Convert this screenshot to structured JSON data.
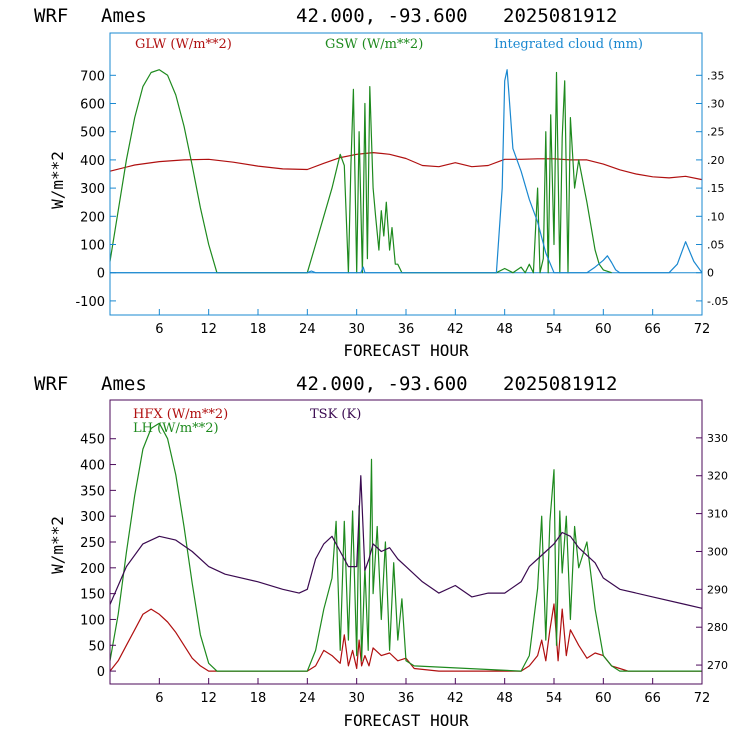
{
  "colors": {
    "glw": "#b01010",
    "gsw": "#1e8a1e",
    "cloud": "#1a88d0",
    "hfx": "#b01010",
    "lh": "#1e8a1e",
    "tsk": "#3a0a50",
    "frame1": "#1a88d0",
    "frame2": "#4b0a5a"
  },
  "chart_data": [
    {
      "type": "line",
      "header": {
        "model": "WRF",
        "site": "Ames",
        "coords": "42.000, -93.600",
        "init": "2025081912"
      },
      "xlabel": "FORECAST HOUR",
      "ylabel": "W/m**2",
      "xlim": [
        0,
        72
      ],
      "ylim": [
        -150,
        850
      ],
      "y2lim": [
        -0.075,
        0.425
      ],
      "x_ticks": [
        "6",
        "12",
        "18",
        "24",
        "30",
        "36",
        "42",
        "48",
        "54",
        "60",
        "66",
        "72"
      ],
      "y_ticks": [
        "-100",
        "0",
        "100",
        "200",
        "300",
        "400",
        "500",
        "600",
        "700"
      ],
      "y2_ticks": [
        "-.05",
        "0",
        ".05",
        ".10",
        ".15",
        ".20",
        ".25",
        ".30",
        ".35"
      ],
      "grid": false,
      "legend_placement": "top",
      "series": [
        {
          "name": "GLW (W/m**2)",
          "axis": "left",
          "x": [
            0,
            3,
            6,
            9,
            12,
            15,
            18,
            21,
            24,
            26,
            28,
            30,
            32,
            34,
            36,
            38,
            40,
            42,
            44,
            46,
            48,
            50,
            52,
            54,
            56,
            58,
            60,
            62,
            64,
            66,
            68,
            70,
            72
          ],
          "y": [
            360,
            382,
            394,
            400,
            402,
            392,
            378,
            368,
            366,
            388,
            408,
            420,
            426,
            420,
            405,
            380,
            376,
            390,
            376,
            380,
            402,
            402,
            404,
            404,
            400,
            400,
            385,
            365,
            350,
            340,
            336,
            342,
            330
          ]
        },
        {
          "name": "GSW (W/m**2)",
          "axis": "left",
          "x": [
            0,
            1,
            2,
            3,
            4,
            5,
            6,
            7,
            8,
            9,
            10,
            11,
            12,
            13,
            24,
            25,
            26,
            27,
            28,
            28.5,
            29,
            29.3,
            29.6,
            30,
            30.3,
            30.7,
            31,
            31.3,
            31.6,
            32,
            32.3,
            32.7,
            33,
            33.3,
            33.6,
            34,
            34.3,
            34.7,
            35,
            35.5,
            36,
            37,
            47,
            48,
            49,
            50,
            50.5,
            51,
            51.5,
            52,
            52.3,
            52.7,
            53,
            53.3,
            53.6,
            54,
            54.3,
            54.7,
            55,
            55.3,
            55.7,
            56,
            56.5,
            57,
            58,
            59,
            59.5,
            60,
            61
          ],
          "y": [
            40,
            220,
            400,
            550,
            660,
            710,
            720,
            700,
            630,
            520,
            380,
            230,
            100,
            0,
            0,
            100,
            200,
            300,
            420,
            380,
            0,
            380,
            650,
            0,
            500,
            0,
            600,
            50,
            660,
            300,
            200,
            80,
            220,
            130,
            250,
            80,
            160,
            30,
            30,
            0,
            0,
            0,
            0,
            15,
            0,
            20,
            0,
            30,
            0,
            300,
            0,
            50,
            500,
            0,
            560,
            100,
            710,
            0,
            480,
            680,
            0,
            550,
            300,
            400,
            250,
            80,
            30,
            10,
            0
          ]
        },
        {
          "name": "Integrated cloud (mm)",
          "axis": "right",
          "x": [
            0,
            24,
            24.5,
            25,
            29,
            30.5,
            30.8,
            31,
            31.2,
            47,
            47.7,
            48,
            48.3,
            48.5,
            49,
            49.5,
            50,
            51,
            52,
            53,
            54,
            58,
            59,
            60,
            60.5,
            61,
            61.5,
            62,
            68,
            69,
            70,
            71,
            72
          ],
          "y": [
            0,
            0,
            0.003,
            0,
            0,
            0,
            0.01,
            0,
            0,
            0,
            0.15,
            0.34,
            0.36,
            0.32,
            0.22,
            0.2,
            0.18,
            0.13,
            0.09,
            0.035,
            0,
            0,
            0.01,
            0.022,
            0.03,
            0.018,
            0.005,
            0,
            0,
            0.015,
            0.055,
            0.02,
            0
          ]
        }
      ]
    },
    {
      "type": "line",
      "header": {
        "model": "WRF",
        "site": "Ames",
        "coords": "42.000, -93.600",
        "init": "2025081912"
      },
      "xlabel": "FORECAST HOUR",
      "ylabel": "W/m**2",
      "xlim": [
        0,
        72
      ],
      "ylim": [
        -25,
        525
      ],
      "y2lim": [
        265,
        340
      ],
      "x_ticks": [
        "6",
        "12",
        "18",
        "24",
        "30",
        "36",
        "42",
        "48",
        "54",
        "60",
        "66",
        "72"
      ],
      "y_ticks": [
        "0",
        "50",
        "100",
        "150",
        "200",
        "250",
        "300",
        "350",
        "400",
        "450"
      ],
      "y2_ticks": [
        "270",
        "280",
        "290",
        "300",
        "310",
        "320",
        "330"
      ],
      "grid": false,
      "legend_placement": "top-left",
      "series": [
        {
          "name": "HFX (W/m**2)",
          "axis": "left",
          "x": [
            0,
            1,
            2,
            3,
            4,
            5,
            6,
            7,
            8,
            9,
            10,
            11,
            12,
            24,
            25,
            26,
            27,
            28,
            28.5,
            29,
            29.5,
            30,
            30.3,
            30.6,
            31,
            31.5,
            32,
            33,
            34,
            35,
            36,
            37,
            40,
            50,
            51,
            52,
            52.5,
            53,
            53.5,
            54,
            54.5,
            55,
            55.5,
            56,
            57,
            58,
            59,
            60,
            61,
            62,
            63,
            72
          ],
          "y": [
            0,
            20,
            50,
            80,
            110,
            120,
            110,
            95,
            75,
            50,
            25,
            10,
            0,
            0,
            10,
            40,
            30,
            15,
            70,
            10,
            40,
            5,
            60,
            10,
            30,
            10,
            45,
            30,
            35,
            20,
            25,
            5,
            0,
            0,
            10,
            30,
            60,
            20,
            80,
            130,
            20,
            120,
            30,
            80,
            50,
            25,
            35,
            30,
            10,
            5,
            0,
            0
          ]
        },
        {
          "name": "LH  (W/m**2)",
          "axis": "left",
          "x": [
            0,
            1,
            2,
            3,
            4,
            5,
            6,
            7,
            8,
            9,
            10,
            11,
            12,
            13,
            24,
            25,
            26,
            27,
            27.5,
            28,
            28.5,
            29,
            29.5,
            30,
            30.3,
            30.6,
            31,
            31.4,
            31.8,
            32,
            32.5,
            33,
            33.5,
            34,
            34.5,
            35,
            35.5,
            36,
            37,
            50,
            51,
            52,
            52.5,
            53,
            53.5,
            54,
            54.3,
            54.7,
            55,
            55.5,
            56,
            56.5,
            57,
            58,
            59,
            60,
            61,
            62,
            72
          ],
          "y": [
            20,
            110,
            230,
            340,
            430,
            470,
            480,
            450,
            380,
            280,
            170,
            70,
            15,
            0,
            0,
            40,
            120,
            180,
            290,
            40,
            290,
            60,
            310,
            30,
            320,
            20,
            200,
            40,
            410,
            150,
            280,
            100,
            250,
            40,
            210,
            60,
            140,
            20,
            10,
            0,
            30,
            160,
            300,
            60,
            290,
            390,
            50,
            310,
            190,
            300,
            100,
            280,
            200,
            250,
            120,
            30,
            10,
            0,
            0
          ]
        },
        {
          "name": "TSK (K)",
          "axis": "right",
          "x": [
            0,
            2,
            4,
            6,
            8,
            10,
            12,
            14,
            18,
            21,
            23,
            24,
            25,
            26,
            27,
            28,
            29,
            30,
            30.5,
            31,
            31.5,
            32,
            33,
            34,
            35,
            36,
            38,
            40,
            42,
            44,
            46,
            48,
            50,
            51,
            52,
            53,
            54,
            55,
            56,
            57,
            58,
            59,
            60,
            62,
            66,
            70,
            72
          ],
          "y": [
            286,
            296,
            302,
            304,
            303,
            300,
            296,
            294,
            292,
            290,
            289,
            290,
            298,
            302,
            304,
            300,
            296,
            296,
            320,
            295,
            298,
            302,
            300,
            301,
            298,
            296,
            292,
            289,
            291,
            288,
            289,
            289,
            292,
            296,
            298,
            300,
            302,
            305,
            304,
            301,
            299,
            297,
            293,
            290,
            288,
            286,
            285
          ]
        }
      ]
    }
  ]
}
